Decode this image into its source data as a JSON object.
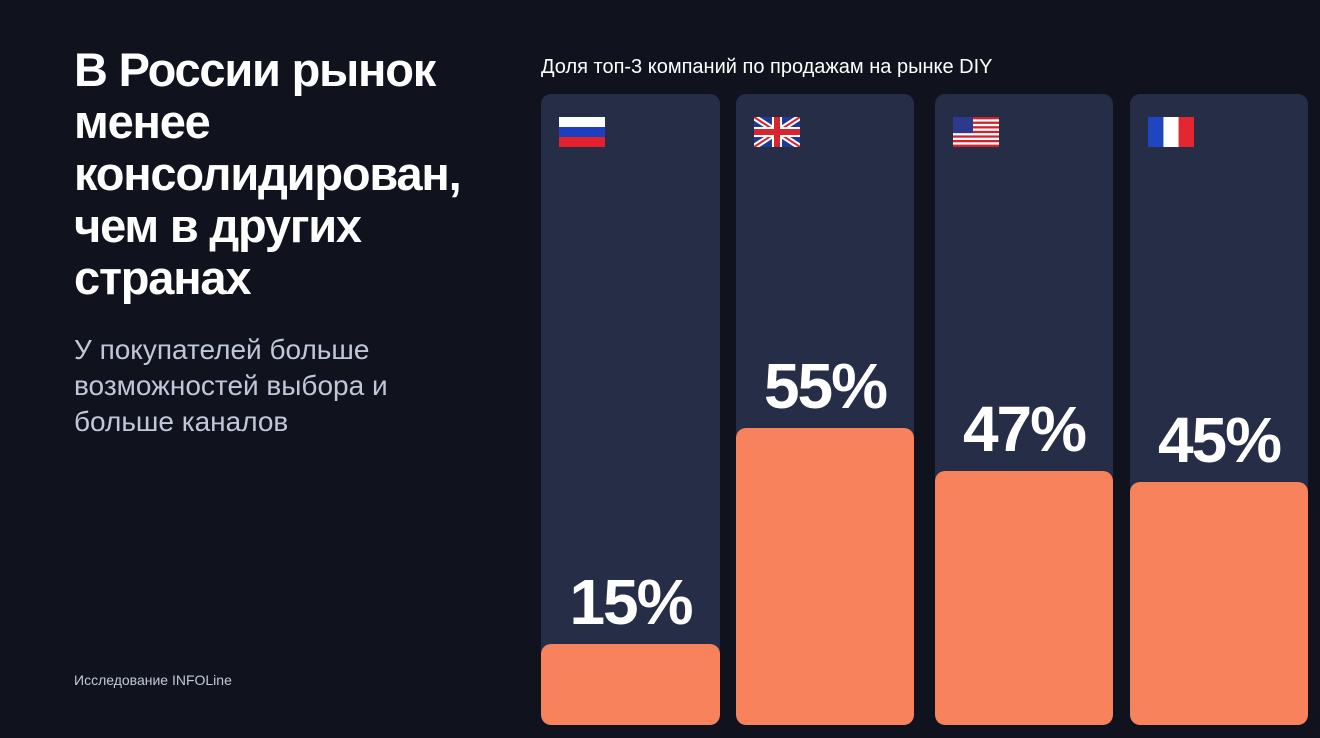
{
  "headline": "В России рынок менее консолидирован, чем в других странах",
  "subhead": "У покупателей больше возможностей выбора и больше каналов",
  "source": "Исследование INFOLine",
  "chart_data": {
    "type": "bar",
    "title": "Доля топ-3 компаний по продажам на рынке DIY",
    "xlabel": "",
    "ylabel": "",
    "ylim": [
      0,
      100
    ],
    "categories": [
      "russia-flag-icon",
      "uk-flag-icon",
      "usa-flag-icon",
      "france-flag-icon"
    ],
    "values": [
      15,
      55,
      47,
      45
    ],
    "value_labels": [
      "15%",
      "55%",
      "47%",
      "45%"
    ],
    "grid": false,
    "colors": {
      "background": "#10131d",
      "column": "#252d47",
      "bar": "#f8825b"
    }
  }
}
